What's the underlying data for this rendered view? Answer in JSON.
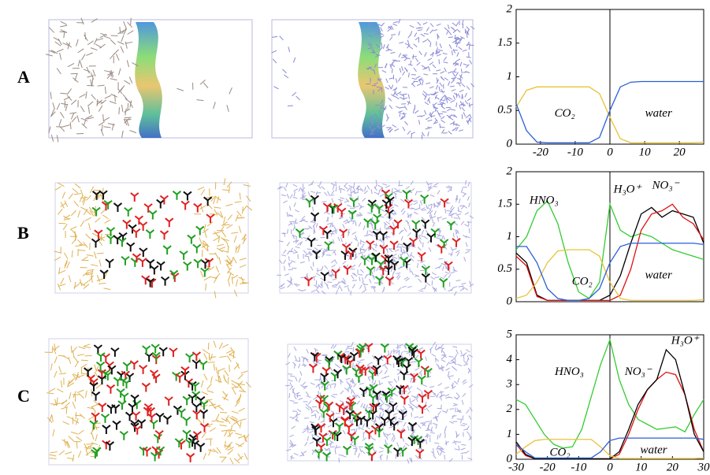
{
  "chart_data": [
    {
      "type": "line",
      "label": "A",
      "xlim": [
        -27,
        27
      ],
      "xticks": [
        -20,
        -10,
        0,
        10,
        20
      ],
      "ylim": [
        0,
        2
      ],
      "yticks": [
        0,
        0.5,
        1,
        1.5,
        2
      ],
      "vline": 0,
      "x": [
        -27,
        -24,
        -21,
        -18,
        -15,
        -12,
        -9,
        -6,
        -3,
        0,
        3,
        6,
        9,
        12,
        15,
        18,
        21,
        24,
        27
      ],
      "series": [
        {
          "name": "CO₂",
          "color": "#e8c23a",
          "values": [
            0.55,
            0.8,
            0.85,
            0.85,
            0.85,
            0.85,
            0.85,
            0.85,
            0.75,
            0.4,
            0.08,
            0.02,
            0.02,
            0.02,
            0.02,
            0.02,
            0.02,
            0.02,
            0.03
          ]
        },
        {
          "name": "water",
          "color": "#2a5fd6",
          "values": [
            0.6,
            0.2,
            0.03,
            0.02,
            0.02,
            0.02,
            0.02,
            0.02,
            0.1,
            0.5,
            0.85,
            0.92,
            0.93,
            0.93,
            0.93,
            0.93,
            0.93,
            0.93,
            0.93
          ]
        }
      ]
    },
    {
      "type": "line",
      "label": "B",
      "xlim": [
        -27,
        27
      ],
      "ylim": [
        0,
        2
      ],
      "yticks": [
        0,
        0.5,
        1,
        1.5,
        2
      ],
      "vline": 0,
      "x": [
        -27,
        -24,
        -21,
        -18,
        -15,
        -12,
        -9,
        -6,
        -3,
        0,
        3,
        6,
        9,
        12,
        15,
        18,
        21,
        24,
        27
      ],
      "series": [
        {
          "name": "HNO₃",
          "color": "#33cc33",
          "values": [
            0.8,
            1.0,
            1.4,
            1.55,
            1.2,
            0.6,
            0.15,
            0.05,
            0.3,
            1.5,
            1.1,
            1.0,
            1.05,
            1.0,
            0.9,
            0.8,
            0.75,
            0.7,
            0.65
          ]
        },
        {
          "name": "H₃O⁺",
          "color": "#000000",
          "values": [
            0.75,
            0.6,
            0.1,
            0.02,
            0.02,
            0.02,
            0.02,
            0.02,
            0.02,
            0.1,
            0.4,
            0.9,
            1.35,
            1.45,
            1.3,
            1.4,
            1.35,
            1.3,
            0.9
          ]
        },
        {
          "name": "NO₃⁻",
          "color": "#e01010",
          "values": [
            0.7,
            0.55,
            0.08,
            0.02,
            0.02,
            0.02,
            0.02,
            0.02,
            0.02,
            0.02,
            0.1,
            0.5,
            1.1,
            1.35,
            1.4,
            1.5,
            1.3,
            1.2,
            0.95
          ]
        },
        {
          "name": "CO₂",
          "color": "#e8c23a",
          "values": [
            0.05,
            0.1,
            0.3,
            0.6,
            0.78,
            0.8,
            0.8,
            0.8,
            0.7,
            0.3,
            0.05,
            0.02,
            0.02,
            0.02,
            0.02,
            0.02,
            0.02,
            0.02,
            0.03
          ]
        },
        {
          "name": "water",
          "color": "#2a5fd6",
          "values": [
            0.85,
            0.85,
            0.6,
            0.2,
            0.05,
            0.02,
            0.02,
            0.05,
            0.2,
            0.6,
            0.85,
            0.9,
            0.9,
            0.9,
            0.9,
            0.9,
            0.9,
            0.9,
            0.88
          ]
        }
      ]
    },
    {
      "type": "line",
      "label": "C",
      "xlim": [
        -30,
        30
      ],
      "xticks": [
        -30,
        -20,
        -10,
        0,
        10,
        20,
        30
      ],
      "ylim": [
        0,
        5
      ],
      "yticks": [
        0,
        1,
        2,
        3,
        4,
        5
      ],
      "vline": 0,
      "x": [
        -30,
        -27,
        -24,
        -21,
        -18,
        -15,
        -12,
        -9,
        -6,
        -3,
        0,
        3,
        6,
        9,
        12,
        15,
        18,
        21,
        24,
        27,
        30
      ],
      "series": [
        {
          "name": "HNO₃",
          "color": "#33cc33",
          "values": [
            2.4,
            2.2,
            1.6,
            1.0,
            0.6,
            0.45,
            0.5,
            1.2,
            2.5,
            3.8,
            4.8,
            3.2,
            2.2,
            1.6,
            1.4,
            1.2,
            1.25,
            1.3,
            1.1,
            1.8,
            2.4
          ]
        },
        {
          "name": "NO₃⁻",
          "color": "#e01010",
          "values": [
            0.6,
            0.15,
            0.02,
            0.02,
            0.02,
            0.02,
            0.02,
            0.02,
            0.02,
            0.02,
            0.02,
            0.2,
            1.0,
            2.0,
            2.8,
            3.2,
            3.5,
            3.4,
            2.6,
            1.2,
            0.3
          ]
        },
        {
          "name": "H₃O⁺",
          "color": "#000000",
          "values": [
            0.7,
            0.2,
            0.02,
            0.02,
            0.02,
            0.02,
            0.02,
            0.02,
            0.02,
            0.02,
            0.02,
            0.3,
            1.2,
            2.2,
            2.8,
            3.2,
            4.4,
            4.0,
            2.6,
            1.0,
            0.3
          ]
        },
        {
          "name": "CO₂",
          "color": "#e8c23a",
          "values": [
            0.2,
            0.5,
            0.75,
            0.8,
            0.8,
            0.8,
            0.8,
            0.8,
            0.8,
            0.5,
            0.15,
            0.03,
            0.03,
            0.03,
            0.03,
            0.03,
            0.03,
            0.03,
            0.03,
            0.03,
            0.05
          ]
        },
        {
          "name": "water",
          "color": "#2a5fd6",
          "values": [
            0.6,
            0.3,
            0.05,
            0.05,
            0.05,
            0.05,
            0.05,
            0.05,
            0.05,
            0.3,
            0.75,
            0.85,
            0.85,
            0.85,
            0.85,
            0.85,
            0.85,
            0.85,
            0.85,
            0.85,
            0.8
          ]
        }
      ]
    }
  ]
}
